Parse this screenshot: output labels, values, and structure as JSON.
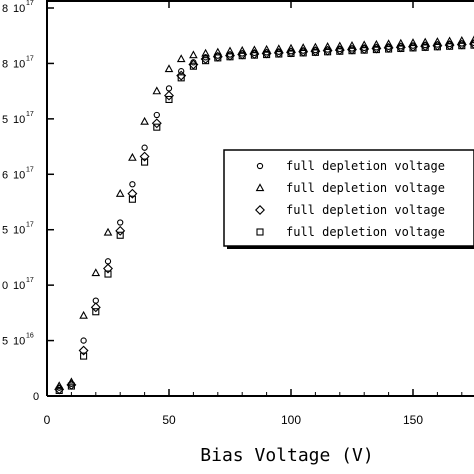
{
  "chart_data": {
    "type": "scatter",
    "xlabel": "Bias Voltage (V)",
    "xlim": [
      0,
      175
    ],
    "ylim": [
      0,
      7
    ],
    "x_ticks": [
      0,
      50,
      100,
      150
    ],
    "x_tick_labels": [
      "0",
      "50",
      "100",
      "150"
    ],
    "y_ticks": [
      {
        "value": 7,
        "prefix": "8",
        "mant": "10",
        "exp": "17"
      },
      {
        "value": 6,
        "prefix": "8",
        "mant": "10",
        "exp": "17"
      },
      {
        "value": 5,
        "prefix": "5",
        "mant": "10",
        "exp": "17"
      },
      {
        "value": 4,
        "prefix": "6",
        "mant": "10",
        "exp": "17"
      },
      {
        "value": 3,
        "prefix": "5",
        "mant": "10",
        "exp": "17"
      },
      {
        "value": 2,
        "prefix": "0",
        "mant": "10",
        "exp": "17"
      },
      {
        "value": 1,
        "prefix": "5",
        "mant": "10",
        "exp": "16"
      },
      {
        "value": 0,
        "prefix": "0",
        "mant": "",
        "exp": ""
      }
    ],
    "legend_position": "right",
    "series": [
      {
        "name": "full depletion voltage",
        "marker": "circle",
        "x": [
          5,
          10,
          15,
          20,
          25,
          30,
          35,
          40,
          45,
          50,
          55,
          60,
          65,
          70,
          75,
          80,
          85,
          90,
          95,
          100,
          105,
          110,
          115,
          120,
          125,
          130,
          135,
          140,
          145,
          150,
          155,
          160,
          165,
          170,
          175
        ],
        "y": [
          0.15,
          0.22,
          1.0,
          1.72,
          2.43,
          3.13,
          3.82,
          4.48,
          5.07,
          5.55,
          5.86,
          6.02,
          6.11,
          6.14,
          6.16,
          6.18,
          6.19,
          6.2,
          6.21,
          6.22,
          6.23,
          6.24,
          6.25,
          6.26,
          6.27,
          6.28,
          6.29,
          6.3,
          6.31,
          6.32,
          6.33,
          6.34,
          6.35,
          6.36,
          6.37
        ]
      },
      {
        "name": "full depletion voltage",
        "marker": "triangle",
        "x": [
          5,
          10,
          15,
          20,
          25,
          30,
          35,
          40,
          45,
          50,
          55,
          60,
          65,
          70,
          75,
          80,
          85,
          90,
          95,
          100,
          105,
          110,
          115,
          120,
          125,
          130,
          135,
          140,
          145,
          150,
          155,
          160,
          165,
          170,
          175
        ],
        "y": [
          0.18,
          0.25,
          1.45,
          2.22,
          2.95,
          3.65,
          4.3,
          4.95,
          5.5,
          5.9,
          6.08,
          6.15,
          6.18,
          6.2,
          6.22,
          6.23,
          6.24,
          6.25,
          6.26,
          6.27,
          6.28,
          6.29,
          6.3,
          6.31,
          6.32,
          6.33,
          6.34,
          6.35,
          6.36,
          6.37,
          6.38,
          6.39,
          6.4,
          6.41,
          6.42
        ]
      },
      {
        "name": "full depletion voltage",
        "marker": "diamond",
        "x": [
          5,
          10,
          15,
          20,
          25,
          30,
          35,
          40,
          45,
          50,
          55,
          60,
          65,
          70,
          75,
          80,
          85,
          90,
          95,
          100,
          105,
          110,
          115,
          120,
          125,
          130,
          135,
          140,
          145,
          150,
          155,
          160,
          165,
          170,
          175
        ],
        "y": [
          0.12,
          0.2,
          0.82,
          1.6,
          2.3,
          2.98,
          3.65,
          4.32,
          4.92,
          5.42,
          5.78,
          5.98,
          6.08,
          6.12,
          6.14,
          6.16,
          6.17,
          6.18,
          6.19,
          6.2,
          6.21,
          6.22,
          6.23,
          6.24,
          6.25,
          6.26,
          6.27,
          6.28,
          6.29,
          6.3,
          6.31,
          6.32,
          6.33,
          6.34,
          6.35
        ]
      },
      {
        "name": "full depletion voltage",
        "marker": "square",
        "x": [
          5,
          10,
          15,
          20,
          25,
          30,
          35,
          40,
          45,
          50,
          55,
          60,
          65,
          70,
          75,
          80,
          85,
          90,
          95,
          100,
          105,
          110,
          115,
          120,
          125,
          130,
          135,
          140,
          145,
          150,
          155,
          160,
          165,
          170,
          175
        ],
        "y": [
          0.1,
          0.18,
          0.72,
          1.52,
          2.2,
          2.9,
          3.55,
          4.22,
          4.85,
          5.35,
          5.74,
          5.95,
          6.05,
          6.1,
          6.12,
          6.14,
          6.15,
          6.16,
          6.17,
          6.18,
          6.19,
          6.2,
          6.21,
          6.22,
          6.23,
          6.24,
          6.25,
          6.26,
          6.27,
          6.28,
          6.29,
          6.3,
          6.31,
          6.32,
          6.33
        ]
      }
    ]
  }
}
